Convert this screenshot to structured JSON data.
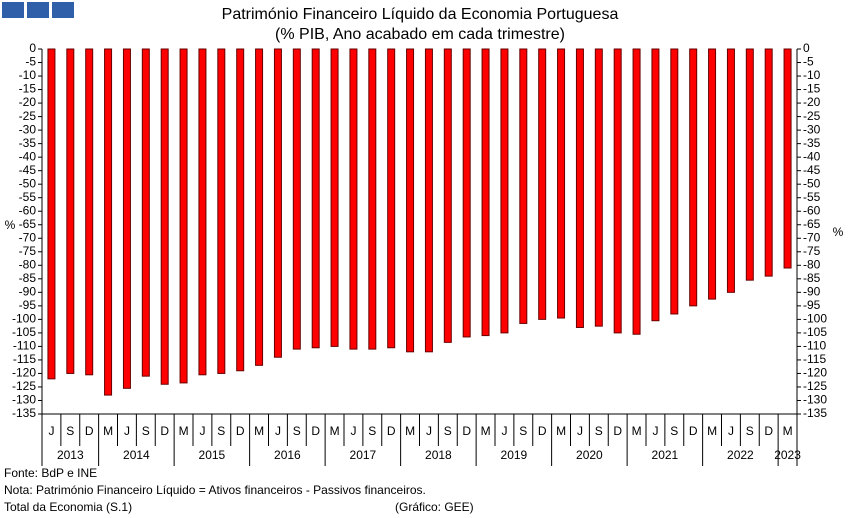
{
  "chart_data": {
    "type": "bar",
    "title": "Património Financeiro Líquido da Economia Portuguesa",
    "subtitle": "(% PIB, Ano acabado em cada trimestre)",
    "y_label": "%",
    "y2_label": "%",
    "year_groups": [
      {
        "label": "2013",
        "quarters": [
          "J",
          "S",
          "D"
        ]
      },
      {
        "label": "2014",
        "quarters": [
          "M",
          "J",
          "S",
          "D"
        ]
      },
      {
        "label": "2015",
        "quarters": [
          "M",
          "J",
          "S",
          "D"
        ]
      },
      {
        "label": "2016",
        "quarters": [
          "M",
          "J",
          "S",
          "D"
        ]
      },
      {
        "label": "2017",
        "quarters": [
          "M",
          "J",
          "S",
          "D"
        ]
      },
      {
        "label": "2018",
        "quarters": [
          "M",
          "J",
          "S",
          "D"
        ]
      },
      {
        "label": "2019",
        "quarters": [
          "M",
          "J",
          "S",
          "D"
        ]
      },
      {
        "label": "2020",
        "quarters": [
          "M",
          "J",
          "S",
          "D"
        ]
      },
      {
        "label": "2021",
        "quarters": [
          "M",
          "J",
          "S",
          "D"
        ]
      },
      {
        "label": "2022",
        "quarters": [
          "M",
          "J",
          "S",
          "D"
        ]
      },
      {
        "label": "2023",
        "quarters": [
          "M"
        ]
      }
    ],
    "values": [
      -122,
      -120,
      -120.5,
      -128,
      -125.5,
      -121,
      -124,
      -123.5,
      -120.5,
      -120,
      -119,
      -117,
      -114,
      -111,
      -110.5,
      -110,
      -111,
      -111,
      -110.5,
      -112,
      -112,
      -108.5,
      -106.5,
      -106,
      -105,
      -101.5,
      -100,
      -99.5,
      -103,
      -102.5,
      -105,
      -105.5,
      -100.5,
      -98,
      -95,
      -92.5,
      -90,
      -85.5,
      -84,
      -81
    ],
    "color": "#ff0000",
    "ylim": [
      -135,
      0
    ],
    "yticks": [
      0,
      -5,
      -10,
      -15,
      -20,
      -25,
      -30,
      -35,
      -40,
      -45,
      -50,
      -55,
      -60,
      -65,
      -70,
      -75,
      -80,
      -85,
      -90,
      -95,
      -100,
      -105,
      -110,
      -115,
      -120,
      -125,
      -130,
      -135
    ],
    "y2lim": [
      -135,
      0
    ],
    "y2ticks": [
      0,
      -5,
      -10,
      -15,
      -20,
      -25,
      -30,
      -35,
      -40,
      -45,
      -50,
      -55,
      -60,
      -65,
      -70,
      -75,
      -80,
      -85,
      -90,
      -95,
      -100,
      -105,
      -110,
      -115,
      -120,
      -125,
      -130,
      -135
    ],
    "source": "Fonte: BdP e INE",
    "note": "Nota: Património Financeiro Líquido = Ativos financeiros - Passivos financeiros.",
    "note2": "Total da Economia (S.1)",
    "credit": "(Gráfico: GEE)"
  }
}
